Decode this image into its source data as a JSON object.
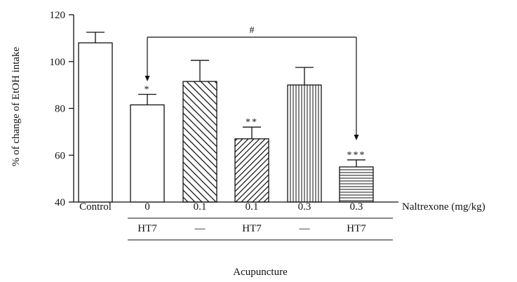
{
  "chart_data": {
    "type": "bar",
    "title": "",
    "ylabel": "% of change of EtOH intake",
    "ylim": [
      40,
      120
    ],
    "yticks": [
      40,
      60,
      80,
      100,
      120
    ],
    "categories": [
      "Control",
      "0",
      "0.1",
      "0.1",
      "0.3",
      "0.3"
    ],
    "values": [
      108,
      81.5,
      91.5,
      67,
      90,
      55
    ],
    "errors": [
      4.5,
      4.5,
      9,
      5,
      7.5,
      3
    ],
    "patterns": [
      "none",
      "none",
      "backslash-hatch",
      "forward-hatch",
      "vertical-lines",
      "horizontal-lines"
    ],
    "significance": [
      "",
      "*",
      "",
      "**",
      "",
      "***"
    ],
    "naltrexone_label": "Naltrexone (mg/kg)",
    "acupuncture_row": [
      "HT7",
      "—",
      "HT7",
      "—",
      "HT7"
    ],
    "acupuncture_label": "Acupuncture",
    "comparison": {
      "from_index": 1,
      "to_index": 5,
      "symbol": "#"
    }
  }
}
